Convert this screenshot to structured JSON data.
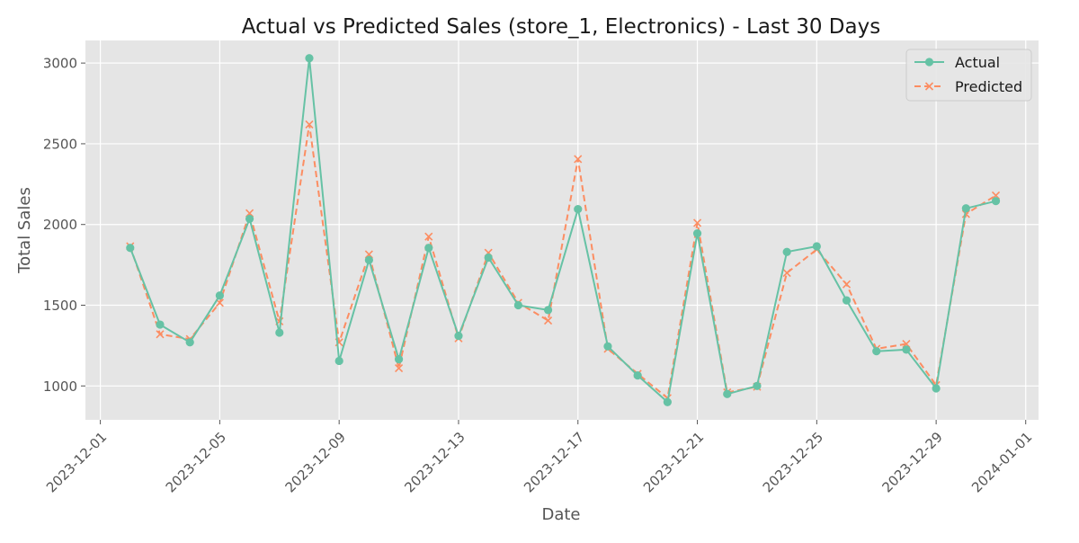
{
  "chart_data": {
    "type": "line",
    "title": "Actual vs Predicted Sales (store_1, Electronics) - Last 30 Days",
    "xlabel": "Date",
    "ylabel": "Total Sales",
    "xlim": [
      "2023-12-01",
      "2024-01-01"
    ],
    "ylim": [
      790,
      3140
    ],
    "x_ticks": [
      "2023-12-01",
      "2023-12-05",
      "2023-12-09",
      "2023-12-13",
      "2023-12-17",
      "2023-12-21",
      "2023-12-25",
      "2023-12-29",
      "2024-01-01"
    ],
    "y_ticks": [
      1000,
      1500,
      2000,
      2500,
      3000
    ],
    "grid": true,
    "legend_position": "top-right",
    "x": [
      "2023-12-02",
      "2023-12-03",
      "2023-12-04",
      "2023-12-05",
      "2023-12-06",
      "2023-12-07",
      "2023-12-08",
      "2023-12-09",
      "2023-12-10",
      "2023-12-11",
      "2023-12-12",
      "2023-12-13",
      "2023-12-14",
      "2023-12-15",
      "2023-12-16",
      "2023-12-17",
      "2023-12-18",
      "2023-12-19",
      "2023-12-20",
      "2023-12-21",
      "2023-12-22",
      "2023-12-23",
      "2023-12-24",
      "2023-12-25",
      "2023-12-26",
      "2023-12-27",
      "2023-12-28",
      "2023-12-29",
      "2023-12-30",
      "2023-12-31"
    ],
    "series": [
      {
        "name": "Actual",
        "color": "#66c2a5",
        "marker": "circle",
        "line_style": "solid",
        "values": [
          1855,
          1380,
          1270,
          1560,
          2035,
          1330,
          3030,
          1155,
          1780,
          1165,
          1855,
          1310,
          1795,
          1500,
          1470,
          2095,
          1245,
          1065,
          900,
          1945,
          950,
          1000,
          1830,
          1865,
          1530,
          1215,
          1225,
          985,
          2100,
          2145
        ]
      },
      {
        "name": "Predicted",
        "color": "#fc8d62",
        "marker": "x",
        "line_style": "dashed",
        "values": [
          1865,
          1320,
          1290,
          1515,
          2070,
          1400,
          2620,
          1270,
          1815,
          1110,
          1925,
          1295,
          1825,
          1515,
          1405,
          2405,
          1230,
          1075,
          925,
          2010,
          960,
          995,
          1700,
          1845,
          1630,
          1230,
          1260,
          1005,
          2065,
          2180
        ]
      }
    ]
  }
}
